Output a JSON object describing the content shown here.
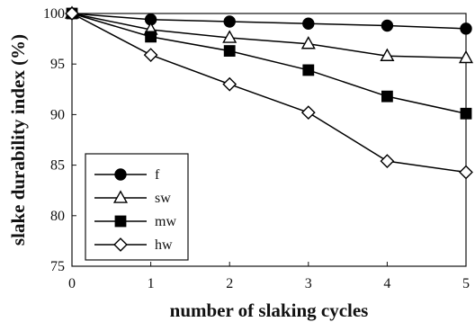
{
  "chart_data": {
    "type": "line",
    "title": "",
    "xlabel": "number of slaking cycles",
    "ylabel": "slake durability index (%)",
    "x": [
      0,
      1,
      2,
      3,
      4,
      5
    ],
    "xlim": [
      0,
      5
    ],
    "ylim": [
      75,
      100
    ],
    "xticks": [
      "0",
      "1",
      "2",
      "3",
      "4",
      "5"
    ],
    "yticks": [
      "75",
      "80",
      "85",
      "90",
      "95",
      "100"
    ],
    "grid": false,
    "legend_position": "bottom-left",
    "series": [
      {
        "name": "f",
        "marker": "filled-circle",
        "color": "#000000",
        "values": [
          100,
          99.4,
          99.2,
          99.0,
          98.8,
          98.5
        ]
      },
      {
        "name": "sw",
        "marker": "open-triangle",
        "color": "#000000",
        "values": [
          100,
          98.4,
          97.6,
          97.0,
          95.8,
          95.6
        ]
      },
      {
        "name": "mw",
        "marker": "filled-square",
        "color": "#000000",
        "values": [
          100,
          97.7,
          96.3,
          94.4,
          91.8,
          90.1
        ]
      },
      {
        "name": "hw",
        "marker": "open-diamond",
        "color": "#000000",
        "values": [
          100,
          95.9,
          93.0,
          90.2,
          85.4,
          84.3
        ]
      }
    ]
  }
}
